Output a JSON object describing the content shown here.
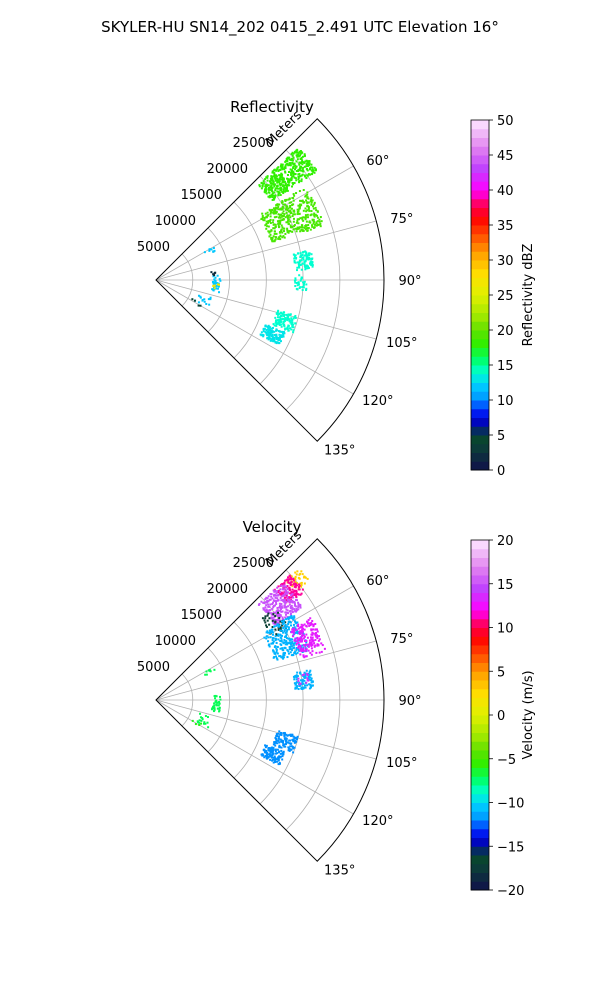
{
  "figure": {
    "suptitle": "SKYLER-HU  SN14_202  0415_2.491 UTC Elevation 16°"
  },
  "chart_data": [
    {
      "type": "heatmap",
      "projection": "polar-sector",
      "title": "Reflectivity",
      "r_label": "Meters",
      "r_ticks": [
        5000,
        10000,
        15000,
        20000,
        25000
      ],
      "r_tick_labels": [
        "5000",
        "10000",
        "15000",
        "20000",
        "25000"
      ],
      "r_range": [
        0,
        31000
      ],
      "theta_range_deg": [
        45,
        135
      ],
      "theta_ticks_deg": [
        60,
        75,
        90,
        105,
        120,
        135
      ],
      "theta_tick_labels": [
        "60°",
        "75°",
        "90°",
        "105°",
        "120°",
        "135°"
      ],
      "grid": true,
      "colorbar": {
        "label": "Reflectivity dBZ",
        "range": [
          0,
          50
        ],
        "ticks": [
          0,
          5,
          10,
          15,
          20,
          25,
          30,
          35,
          40,
          45,
          50
        ],
        "tick_labels": [
          "0",
          "5",
          "10",
          "15",
          "20",
          "25",
          "30",
          "35",
          "40",
          "45",
          "50"
        ],
        "colormap": "pyart-style rainbow",
        "stops": [
          [
            0,
            "#10104a"
          ],
          [
            0.06,
            "#0c3a3a"
          ],
          [
            0.1,
            "#084a2a"
          ],
          [
            0.13,
            "#0000b0"
          ],
          [
            0.17,
            "#0020ff"
          ],
          [
            0.2,
            "#0090ff"
          ],
          [
            0.24,
            "#00c8ff"
          ],
          [
            0.28,
            "#00ffd0"
          ],
          [
            0.32,
            "#00ff60"
          ],
          [
            0.36,
            "#30f000"
          ],
          [
            0.4,
            "#60e000"
          ],
          [
            0.44,
            "#a0e800"
          ],
          [
            0.5,
            "#e0f000"
          ],
          [
            0.56,
            "#ffe000"
          ],
          [
            0.62,
            "#ffa000"
          ],
          [
            0.68,
            "#ff4000"
          ],
          [
            0.72,
            "#ff0000"
          ],
          [
            0.76,
            "#ff0060"
          ],
          [
            0.8,
            "#ff00ff"
          ],
          [
            0.86,
            "#c040ff"
          ],
          [
            0.92,
            "#e080f0"
          ],
          [
            1.0,
            "#ffe8ff"
          ]
        ]
      },
      "clusters": [
        {
          "r": [
            19000,
            26500
          ],
          "theta": [
            47,
            56
          ],
          "value": 18,
          "count": 420
        },
        {
          "r": [
            16500,
            24000
          ],
          "theta": [
            58,
            72
          ],
          "value": 19,
          "count": 380
        },
        {
          "r": [
            19000,
            21500
          ],
          "theta": [
            79,
            86
          ],
          "value": 14,
          "count": 90
        },
        {
          "r": [
            18800,
            20500
          ],
          "theta": [
            88,
            94
          ],
          "value": 14,
          "count": 30
        },
        {
          "r": [
            17000,
            20000
          ],
          "theta": [
            104,
            111
          ],
          "value": 14,
          "count": 110
        },
        {
          "r": [
            16000,
            19000
          ],
          "theta": [
            112,
            118
          ],
          "value": 13,
          "count": 120
        },
        {
          "r": [
            7500,
            9000
          ],
          "theta": [
            60,
            64
          ],
          "value": 12,
          "count": 8
        },
        {
          "r": [
            7700,
            8800
          ],
          "theta": [
            86,
            101
          ],
          "value": 12,
          "count": 30
        },
        {
          "r": [
            7500,
            8800
          ],
          "theta": [
            93,
            99
          ],
          "value": 27,
          "count": 6
        },
        {
          "r": [
            7500,
            8800
          ],
          "theta": [
            80,
            86
          ],
          "value": 2,
          "count": 6
        },
        {
          "r": [
            6000,
            8000
          ],
          "theta": [
            107,
            118
          ],
          "value": 12,
          "count": 14
        },
        {
          "r": [
            5500,
            7000
          ],
          "theta": [
            117,
            122
          ],
          "value": 4,
          "count": 4
        }
      ]
    },
    {
      "type": "heatmap",
      "projection": "polar-sector",
      "title": "Velocity",
      "r_label": "Meters",
      "r_ticks": [
        5000,
        10000,
        15000,
        20000,
        25000
      ],
      "r_tick_labels": [
        "5000",
        "10000",
        "15000",
        "20000",
        "25000"
      ],
      "r_range": [
        0,
        31000
      ],
      "theta_range_deg": [
        45,
        135
      ],
      "theta_ticks_deg": [
        60,
        75,
        90,
        105,
        120,
        135
      ],
      "theta_tick_labels": [
        "60°",
        "75°",
        "90°",
        "105°",
        "120°",
        "135°"
      ],
      "grid": true,
      "colorbar": {
        "label": "Velocity (m/s)",
        "range": [
          -20,
          20
        ],
        "ticks": [
          -20,
          -15,
          -10,
          -5,
          0,
          5,
          10,
          15,
          20
        ],
        "tick_labels": [
          "−20",
          "−15",
          "−10",
          "−5",
          "0",
          "5",
          "10",
          "15",
          "20"
        ],
        "colormap": "pyart-style rainbow",
        "stops": [
          [
            0,
            "#10104a"
          ],
          [
            0.06,
            "#0c3a3a"
          ],
          [
            0.1,
            "#084a2a"
          ],
          [
            0.13,
            "#0000b0"
          ],
          [
            0.17,
            "#0020ff"
          ],
          [
            0.2,
            "#0090ff"
          ],
          [
            0.24,
            "#00c8ff"
          ],
          [
            0.28,
            "#00ffd0"
          ],
          [
            0.32,
            "#00ff60"
          ],
          [
            0.36,
            "#30f000"
          ],
          [
            0.4,
            "#60e000"
          ],
          [
            0.44,
            "#a0e800"
          ],
          [
            0.5,
            "#e0f000"
          ],
          [
            0.56,
            "#ffe000"
          ],
          [
            0.62,
            "#ffa000"
          ],
          [
            0.68,
            "#ff4000"
          ],
          [
            0.72,
            "#ff0000"
          ],
          [
            0.76,
            "#ff0060"
          ],
          [
            0.8,
            "#ff00ff"
          ],
          [
            0.86,
            "#c040ff"
          ],
          [
            0.92,
            "#e080f0"
          ],
          [
            1.0,
            "#ffe8ff"
          ]
        ]
      },
      "clusters": [
        {
          "r": [
            24000,
            26500
          ],
          "theta": [
            47,
            52
          ],
          "value": 3,
          "count": 40
        },
        {
          "r": [
            22000,
            25000
          ],
          "theta": [
            47,
            54
          ],
          "value": 11,
          "count": 120
        },
        {
          "r": [
            19000,
            23500
          ],
          "theta": [
            47,
            58
          ],
          "value": 15,
          "count": 240
        },
        {
          "r": [
            18000,
            20500
          ],
          "theta": [
            52,
            62
          ],
          "value": -17,
          "count": 40
        },
        {
          "r": [
            17000,
            22000
          ],
          "theta": [
            58,
            72
          ],
          "value": -11,
          "count": 260
        },
        {
          "r": [
            20500,
            24000
          ],
          "theta": [
            62,
            74
          ],
          "value": 13,
          "count": 160
        },
        {
          "r": [
            19000,
            21500
          ],
          "theta": [
            79,
            86
          ],
          "value": -11,
          "count": 90
        },
        {
          "r": [
            19500,
            21000
          ],
          "theta": [
            80,
            84
          ],
          "value": 14,
          "count": 12
        },
        {
          "r": [
            17000,
            20000
          ],
          "theta": [
            104,
            111
          ],
          "value": -12,
          "count": 100
        },
        {
          "r": [
            16000,
            19000
          ],
          "theta": [
            112,
            118
          ],
          "value": -12,
          "count": 110
        },
        {
          "r": [
            7500,
            9000
          ],
          "theta": [
            60,
            64
          ],
          "value": -7,
          "count": 8
        },
        {
          "r": [
            7700,
            8800
          ],
          "theta": [
            86,
            101
          ],
          "value": -7,
          "count": 36
        },
        {
          "r": [
            6000,
            8000
          ],
          "theta": [
            107,
            118
          ],
          "value": -7,
          "count": 16
        },
        {
          "r": [
            5500,
            7000
          ],
          "theta": [
            117,
            122
          ],
          "value": -6,
          "count": 4
        }
      ]
    }
  ]
}
